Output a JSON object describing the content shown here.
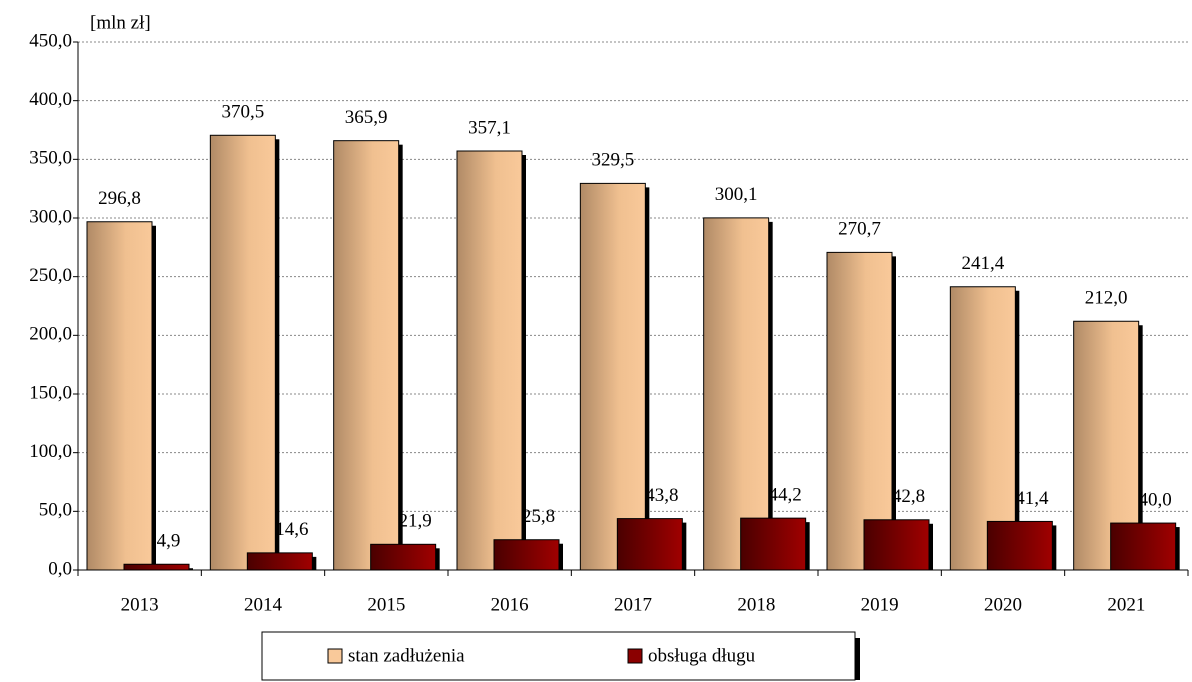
{
  "chart_data": {
    "type": "bar",
    "y_label": "[mln zł]",
    "categories": [
      "2013",
      "2014",
      "2015",
      "2016",
      "2017",
      "2018",
      "2019",
      "2020",
      "2021"
    ],
    "series": [
      {
        "name": "stan zadłużenia",
        "color": "#f9c99a",
        "values": [
          296.8,
          370.5,
          365.9,
          357.1,
          329.5,
          300.1,
          270.7,
          241.4,
          212.0
        ],
        "value_labels": [
          "296,8",
          "370,5",
          "365,9",
          "357,1",
          "329,5",
          "300,1",
          "270,7",
          "241,4",
          "212,0"
        ]
      },
      {
        "name": "obsługa długu",
        "color": "#8b0000",
        "values": [
          4.9,
          14.6,
          21.9,
          25.8,
          43.8,
          44.2,
          42.8,
          41.4,
          40.0
        ],
        "value_labels": [
          "4,9",
          "14,6",
          "21,9",
          "25,8",
          "43,8",
          "44,2",
          "42,8",
          "41,4",
          "40,0"
        ]
      }
    ],
    "ylim": [
      0,
      450
    ],
    "yticks": [
      {
        "value": 0,
        "label": "0,0"
      },
      {
        "value": 50,
        "label": "50,0"
      },
      {
        "value": 100,
        "label": "100,0"
      },
      {
        "value": 150,
        "label": "150,0"
      },
      {
        "value": 200,
        "label": "200,0"
      },
      {
        "value": 250,
        "label": "250,0"
      },
      {
        "value": 300,
        "label": "300,0"
      },
      {
        "value": 350,
        "label": "350,0"
      },
      {
        "value": 400,
        "label": "400,0"
      },
      {
        "value": 450,
        "label": "450,0"
      }
    ],
    "grid": true,
    "legend": "bottom"
  }
}
